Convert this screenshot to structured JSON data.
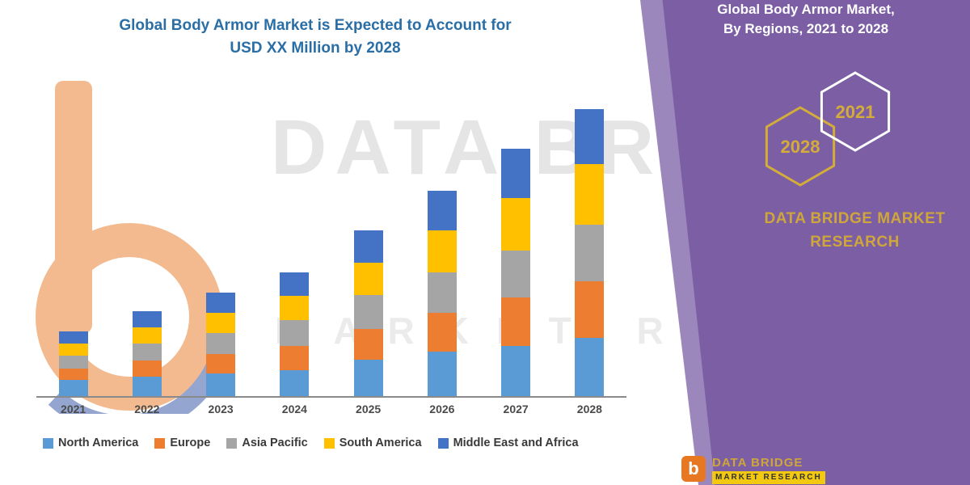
{
  "title": {
    "line1": "Global Body Armor Market is Expected to Account for",
    "line2": "USD XX Million by 2028"
  },
  "watermark": {
    "line1": "DATA BRI",
    "line2": "MARKET RESEARCH"
  },
  "panel": {
    "heading_line1": "Global Body Armor Market,",
    "heading_line2": "By Regions, 2021 to 2028",
    "hexagons": {
      "back": "2028",
      "front": "2021"
    },
    "brand": "DATA BRIDGE MARKET RESEARCH",
    "background_color": "#7B5EA3",
    "accent_gold": "#CFA63B"
  },
  "footer": {
    "icon_letter": "b",
    "brand": "DATA BRIDGE",
    "sub": "MARKET RESEARCH"
  },
  "chart_data": {
    "type": "bar",
    "stacked": true,
    "title": "Global Body Armor Market is Expected to Account for USD XX Million by 2028",
    "xlabel": "",
    "ylabel": "",
    "y_axis_visible": false,
    "note": "No numeric axis shown; values are relative estimates from bar heights (USD XX Million).",
    "categories": [
      "2021",
      "2022",
      "2023",
      "2024",
      "2025",
      "2026",
      "2027",
      "2028"
    ],
    "series": [
      {
        "name": "North America",
        "color": "#5B9BD5",
        "values": [
          20,
          24,
          28,
          32,
          45,
          55,
          62,
          72
        ]
      },
      {
        "name": "Europe",
        "color": "#ED7D31",
        "values": [
          14,
          20,
          24,
          30,
          38,
          48,
          60,
          70
        ]
      },
      {
        "name": "Asia Pacific",
        "color": "#A5A5A5",
        "values": [
          16,
          21,
          26,
          32,
          42,
          50,
          58,
          70
        ]
      },
      {
        "name": "South America",
        "color": "#FFC000",
        "values": [
          15,
          20,
          25,
          30,
          40,
          52,
          65,
          75
        ]
      },
      {
        "name": "Middle East and Africa",
        "color": "#4472C4",
        "values": [
          15,
          20,
          25,
          29,
          40,
          49,
          61,
          68
        ]
      }
    ],
    "totals": [
      80,
      105,
      128,
      153,
      205,
      254,
      306,
      355
    ],
    "ylim": [
      0,
      360
    ],
    "grid": false,
    "legend_position": "bottom"
  }
}
